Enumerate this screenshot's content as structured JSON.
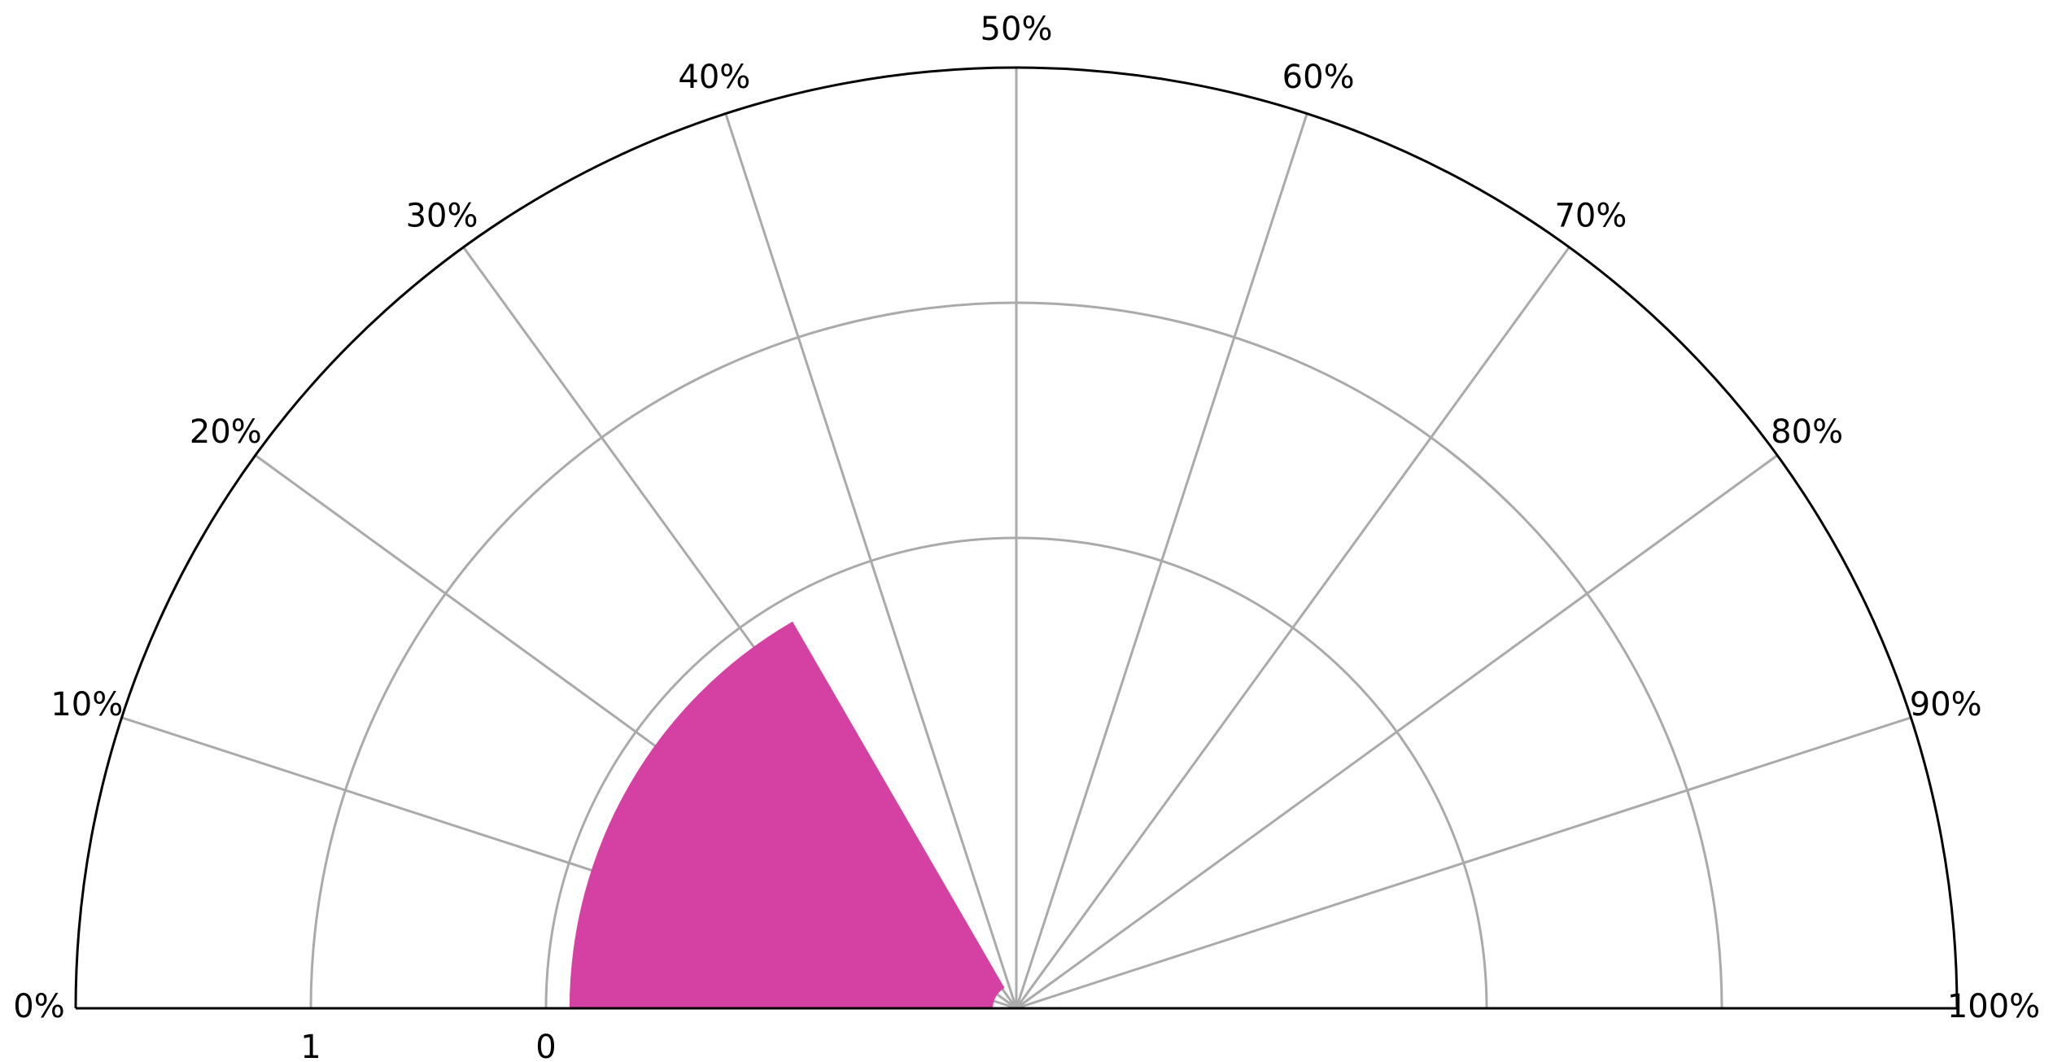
{
  "chart_data": {
    "type": "polar-bar",
    "title": "",
    "theta_ticks": [
      "0%",
      "10%",
      "20%",
      "30%",
      "40%",
      "50%",
      "60%",
      "70%",
      "80%",
      "90%",
      "100%"
    ],
    "radial_ticks": [
      "0",
      "1"
    ],
    "radial_tick_positions": [
      1.5,
      2.5
    ],
    "r_range": [
      -0.5,
      3.5
    ],
    "theta_range_percent": [
      0,
      100
    ],
    "bars": [
      {
        "name": "bar-1",
        "theta_start_percent": 0,
        "theta_end_percent": 33.3,
        "r_base": -0.4,
        "r_top": 1.4,
        "color": "#d541a2"
      }
    ],
    "colors": {
      "bar": "#d541a2",
      "grid": "#aaaaaa",
      "spine": "#000000"
    }
  }
}
